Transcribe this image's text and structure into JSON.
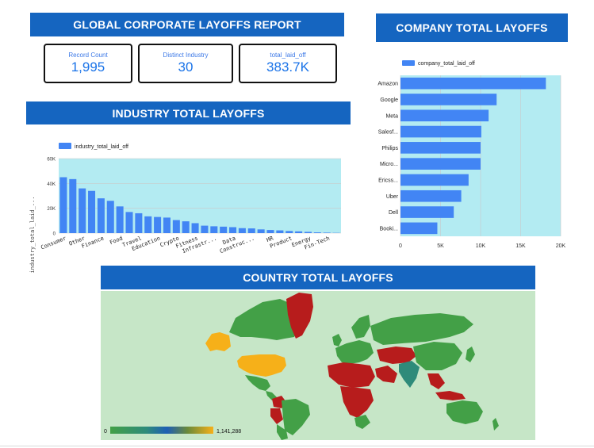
{
  "report": {
    "title": "GLOBAL CORPORATE LAYOFFS REPORT"
  },
  "kpis": [
    {
      "label": "Record Count",
      "value": "1,995"
    },
    {
      "label": "Distinct Industry",
      "value": "30"
    },
    {
      "label": "total_laid_off",
      "value": "383.7K"
    }
  ],
  "industry_panel": {
    "title": "INDUSTRY TOTAL LAYOFFS"
  },
  "company_panel": {
    "title": "COMPANY TOTAL LAYOFFS"
  },
  "country_panel": {
    "title": "COUNTRY TOTAL LAYOFFS",
    "legend_min": "0",
    "legend_max": "1,141,288"
  },
  "colors": {
    "banner": "#1565c0",
    "bar": "#4285f4",
    "plot_bg": "#b3ebf2",
    "ocean": "#c6e6c7",
    "land_high": "#b71c1c",
    "land_mid": "#f6b019",
    "land_low": "#43a047",
    "land_teal": "#2e8b7a"
  },
  "chart_data": [
    {
      "type": "bar",
      "orientation": "vertical",
      "legend": "industry_total_laid_off",
      "ylabel": "industry_total_laid_...",
      "ylim": [
        0,
        60000
      ],
      "yticks": [
        "0",
        "20K",
        "40K",
        "60K"
      ],
      "categories": [
        "Consumer",
        "",
        "Other",
        "",
        "Finance",
        "",
        "Food",
        "",
        "Travel",
        "",
        "Education",
        "",
        "Crypto",
        "",
        "Fitness",
        "",
        "Infrastr...",
        "",
        "Data",
        "",
        "Construc...",
        "",
        "HR",
        "",
        "Product",
        "",
        "Energy",
        "",
        "Fin-Tech",
        ""
      ],
      "values": [
        45000,
        43500,
        36000,
        34000,
        28000,
        26000,
        21500,
        17000,
        16000,
        13500,
        13000,
        12500,
        10500,
        9500,
        8000,
        6000,
        5500,
        5200,
        4800,
        4000,
        3800,
        3000,
        2500,
        2200,
        1700,
        1400,
        1000,
        600,
        400,
        200
      ]
    },
    {
      "type": "bar",
      "orientation": "horizontal",
      "legend": "company_total_laid_off",
      "xlim": [
        0,
        20000
      ],
      "xticks": [
        "0",
        "5K",
        "10K",
        "15K",
        "20K"
      ],
      "categories": [
        "Amazon",
        "Google",
        "Meta",
        "Salesf...",
        "Philips",
        "Micro...",
        "Ericss...",
        "Uber",
        "Dell",
        "Booki..."
      ],
      "values": [
        18150,
        12000,
        11000,
        10090,
        10000,
        10000,
        8500,
        7585,
        6650,
        4600
      ]
    }
  ]
}
